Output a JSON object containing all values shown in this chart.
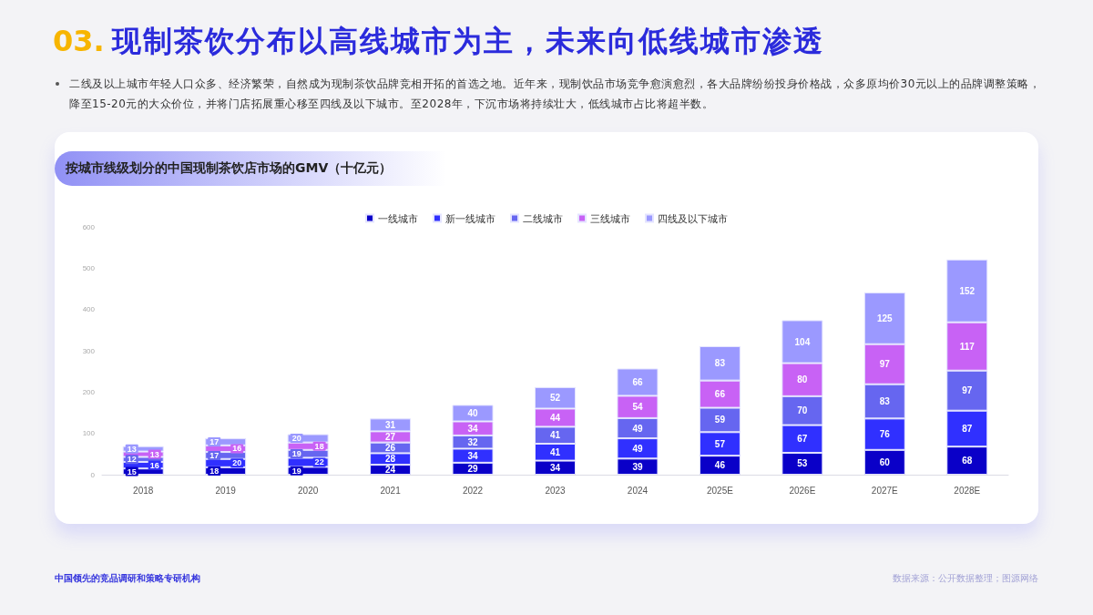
{
  "chart_data": {
    "type": "bar",
    "title": "03. 现制茶饮分布以高线城市为主，未来向低线城市渗透",
    "subtitle": "按城市线级划分的中国现制茶饮店市场的GMV（十亿元）",
    "annotations": [
      "二线及以上城市年轻人口众多、经济繁荣，自然成为现制茶饮品牌竞相开拓的首选之地。近年来，现制饮品市场竞争愈演愈烈，各大品牌纷纷投身价格战，众多原均价30元以上的品牌调整策略，降至15-20元的大众价位，并将门店拓展重心移至四线及以下城市。至2028年，下沉市场将持续壮大，低线城市占比将超半数。",
      "中国领先的竞品调研和策略专研机构",
      "数据来源：公开数据整理；图源网络"
    ],
    "categories": [
      "2018",
      "2019",
      "2020",
      "2021",
      "2022",
      "2023",
      "2024",
      "2025E",
      "2026E",
      "2027E",
      "2028E"
    ],
    "series": [
      {
        "name": "一线城市",
        "color": "#0a00c8",
        "values": [
          15,
          18,
          19,
          24,
          29,
          34,
          39,
          46,
          53,
          60,
          68
        ]
      },
      {
        "name": "新一线城市",
        "color": "#3030ff",
        "values": [
          16,
          20,
          22,
          28,
          34,
          41,
          49,
          57,
          67,
          76,
          87
        ]
      },
      {
        "name": "二线城市",
        "color": "#6666f0",
        "values": [
          12,
          17,
          19,
          26,
          32,
          41,
          49,
          59,
          70,
          83,
          97
        ]
      },
      {
        "name": "三线城市",
        "color": "#c862f5",
        "values": [
          13,
          16,
          18,
          27,
          34,
          44,
          54,
          66,
          80,
          97,
          117
        ]
      },
      {
        "name": "四线及以下城市",
        "color": "#9b99ff",
        "values": [
          13,
          17,
          20,
          31,
          40,
          52,
          66,
          83,
          104,
          125,
          152
        ]
      }
    ],
    "stacked": true,
    "data_labels": true,
    "legend": "top",
    "ylim": [
      0,
      600
    ],
    "yticks": [
      0,
      100,
      200,
      300,
      400,
      500,
      600
    ]
  }
}
